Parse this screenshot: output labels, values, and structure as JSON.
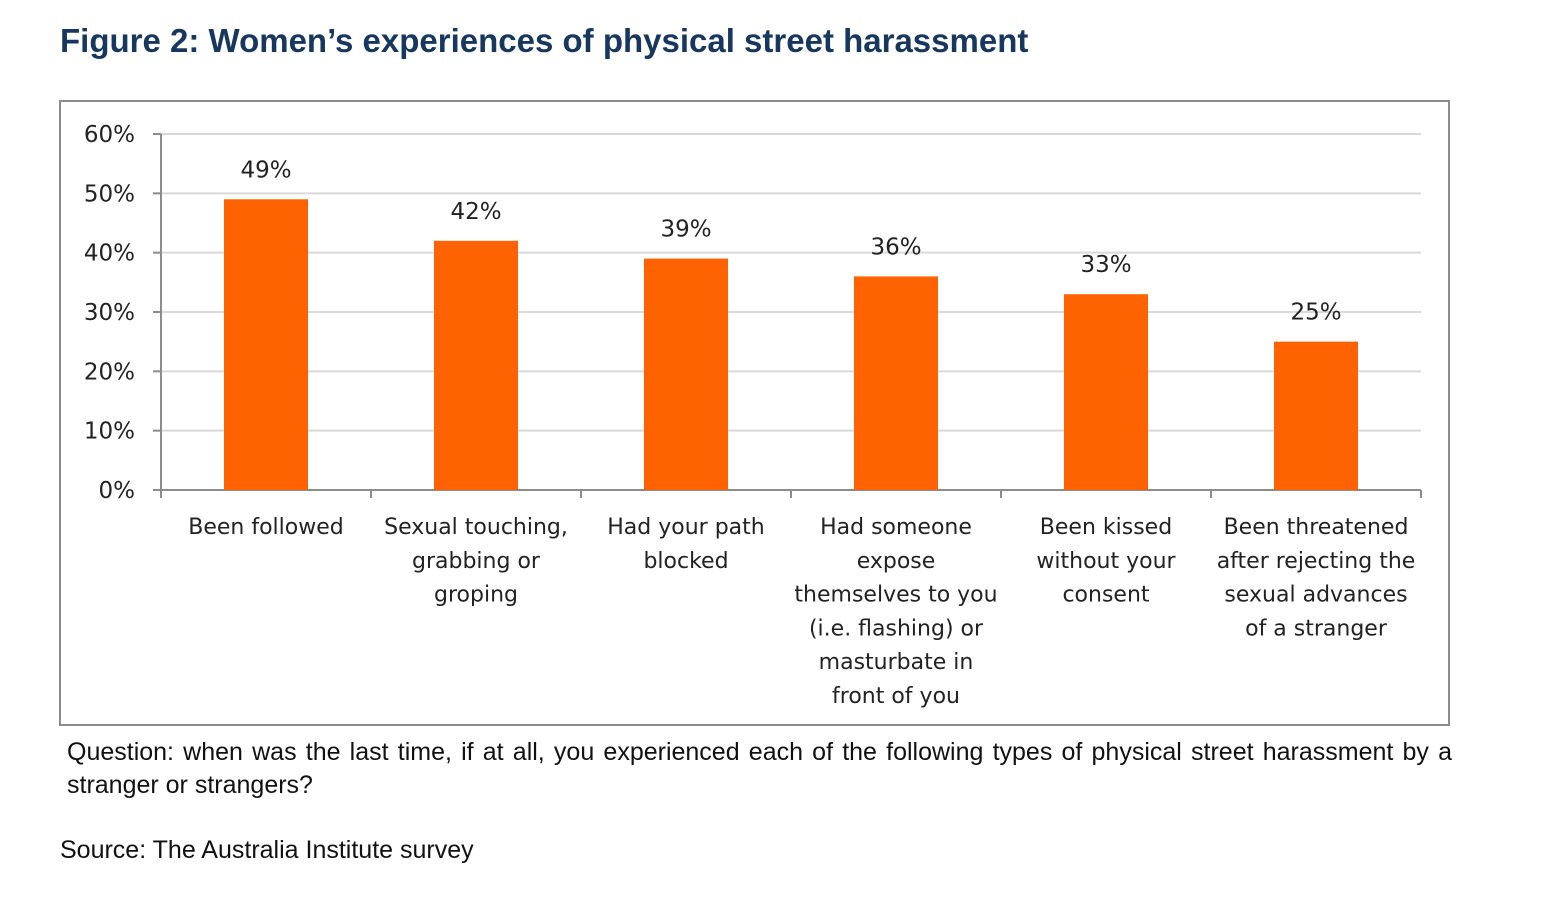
{
  "title": "Figure 2: Women’s experiences of physical street harassment",
  "question": "Question: when was the last time, if at all, you experienced each of the following types of physical street harassment by a stranger or strangers?",
  "source": "Source: The Australia Institute survey",
  "colors": {
    "bar": "#ff6200",
    "title": "#17375e",
    "grid": "#d9d9d9",
    "axis": "#8c8c8c"
  },
  "chart_data": {
    "type": "bar",
    "categories": [
      "Been followed",
      "Sexual touching, grabbing or groping",
      "Had your path blocked",
      "Had someone expose themselves to you (i.e. flashing) or masturbate in front of you",
      "Been kissed without your consent",
      "Been threatened after rejecting the sexual advances of a stranger"
    ],
    "category_lines": [
      [
        "Been followed"
      ],
      [
        "Sexual touching,",
        "grabbing or",
        "groping"
      ],
      [
        "Had your path",
        "blocked"
      ],
      [
        "Had someone",
        "expose",
        "themselves to you",
        "(i.e. flashing) or",
        "masturbate in",
        "front of you"
      ],
      [
        "Been kissed",
        "without your",
        "consent"
      ],
      [
        "Been threatened",
        "after rejecting the",
        "sexual advances",
        "of a stranger"
      ]
    ],
    "values": [
      49,
      42,
      39,
      36,
      33,
      25
    ],
    "data_labels": [
      "49%",
      "42%",
      "39%",
      "36%",
      "33%",
      "25%"
    ],
    "y_ticks": [
      "0%",
      "10%",
      "20%",
      "30%",
      "40%",
      "50%",
      "60%"
    ],
    "ylim": [
      0,
      60
    ],
    "grid": true,
    "legend": "none",
    "xlabel": "",
    "ylabel": ""
  }
}
